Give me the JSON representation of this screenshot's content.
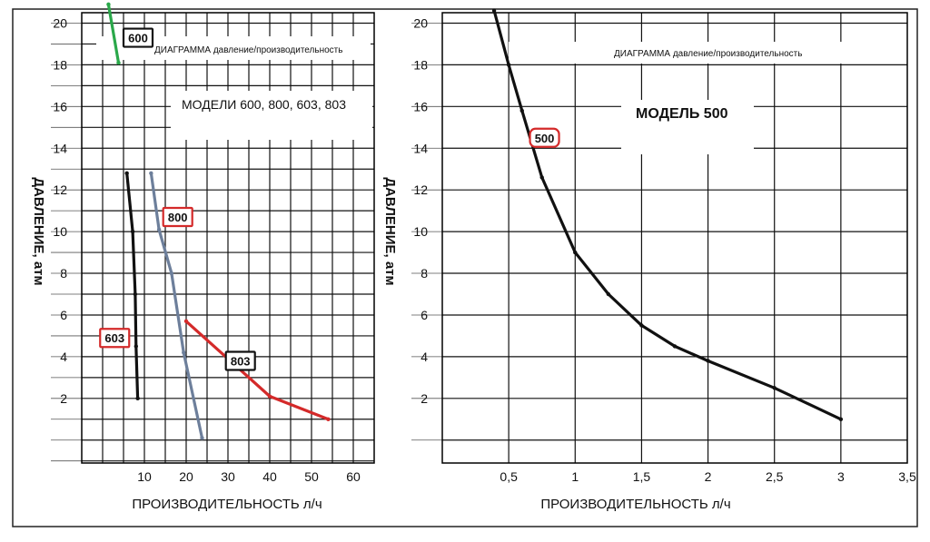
{
  "chart_data": [
    {
      "type": "line",
      "title": "ДИАГРАММА давление/производительность",
      "subtitle": "МОДЕЛИ 600, 800, 603, 803",
      "xlabel": "ПРОИЗВОДИТЕЛЬНОСТЬ л/ч",
      "ylabel": "ДАВЛЕНИЕ, атм",
      "xlim": [
        -5,
        65
      ],
      "ylim": [
        -1.1,
        20.5
      ],
      "x_ticks": [
        {
          "value": 10,
          "label": "10"
        },
        {
          "value": 20,
          "label": "20"
        },
        {
          "value": 30,
          "label": "30"
        },
        {
          "value": 40,
          "label": "40"
        },
        {
          "value": 50,
          "label": "50"
        },
        {
          "value": 60,
          "label": "60"
        }
      ],
      "y_ticks": [
        {
          "value": 2,
          "label": "2"
        },
        {
          "value": 4,
          "label": "4"
        },
        {
          "value": 6,
          "label": "6"
        },
        {
          "value": 8,
          "label": "8"
        },
        {
          "value": 10,
          "label": "10"
        },
        {
          "value": 12,
          "label": "12"
        },
        {
          "value": 14,
          "label": "14"
        },
        {
          "value": 16,
          "label": "16"
        },
        {
          "value": 18,
          "label": "18"
        },
        {
          "value": 20,
          "label": "20"
        }
      ],
      "grid": true,
      "series": [
        {
          "name": "600",
          "color": "#2aa84a",
          "points": [
            [
              1.4,
              20.9
            ],
            [
              3.8,
              18.1
            ]
          ],
          "label_at": [
            5,
            19.3
          ]
        },
        {
          "name": "800",
          "color": "#6d7f9b",
          "points": [
            [
              11.6,
              12.8
            ],
            [
              13.5,
              10.1
            ],
            [
              16.5,
              8
            ],
            [
              19.4,
              4.2
            ],
            [
              23.8,
              0.1
            ]
          ],
          "label_at": [
            14.5,
            10.7
          ]
        },
        {
          "name": "603",
          "color": "#111111",
          "points": [
            [
              5.8,
              12.8
            ],
            [
              7.2,
              10
            ],
            [
              7.8,
              7
            ],
            [
              8,
              4.5
            ],
            [
              8.4,
              2
            ]
          ],
          "label_at": [
            -0.6,
            4.9
          ]
        },
        {
          "name": "803",
          "color": "#d42a2a",
          "points": [
            [
              20,
              5.7
            ],
            [
              30,
              3.9
            ],
            [
              40,
              2.1
            ],
            [
              54,
              1
            ]
          ],
          "label_at": [
            29.5,
            3.8
          ]
        }
      ]
    },
    {
      "type": "line",
      "title": "ДИАГРАММА давление/производительность",
      "subtitle": "МОДЕЛЬ 500",
      "xlabel": "ПРОИЗВОДИТЕЛЬНОСТЬ л/ч",
      "ylabel": "ДАВЛЕНИЕ, атм",
      "xlim": [
        0,
        3.5
      ],
      "ylim": [
        -1.1,
        20.5
      ],
      "x_ticks": [
        {
          "value": 0.5,
          "label": "0,5"
        },
        {
          "value": 1,
          "label": "1"
        },
        {
          "value": 1.5,
          "label": "1,5"
        },
        {
          "value": 2,
          "label": "2"
        },
        {
          "value": 2.5,
          "label": "2,5"
        },
        {
          "value": 3,
          "label": "3"
        },
        {
          "value": 3.5,
          "label": "3,5"
        }
      ],
      "y_ticks": [
        {
          "value": 2,
          "label": "2"
        },
        {
          "value": 4,
          "label": "4"
        },
        {
          "value": 6,
          "label": "6"
        },
        {
          "value": 8,
          "label": "8"
        },
        {
          "value": 10,
          "label": "10"
        },
        {
          "value": 12,
          "label": "12"
        },
        {
          "value": 14,
          "label": "14"
        },
        {
          "value": 16,
          "label": "16"
        },
        {
          "value": 18,
          "label": "18"
        },
        {
          "value": 20,
          "label": "20"
        }
      ],
      "grid": true,
      "series": [
        {
          "name": "500",
          "color": "#111111",
          "points": [
            [
              0.39,
              20.6
            ],
            [
              0.5,
              18
            ],
            [
              0.6,
              15.8
            ],
            [
              0.75,
              12.6
            ],
            [
              1,
              9
            ],
            [
              1.25,
              7
            ],
            [
              1.5,
              5.5
            ],
            [
              1.75,
              4.5
            ],
            [
              2,
              3.8
            ],
            [
              2.5,
              2.5
            ],
            [
              3,
              1
            ]
          ],
          "label_at": [
            0.66,
            14.5
          ]
        }
      ]
    }
  ]
}
